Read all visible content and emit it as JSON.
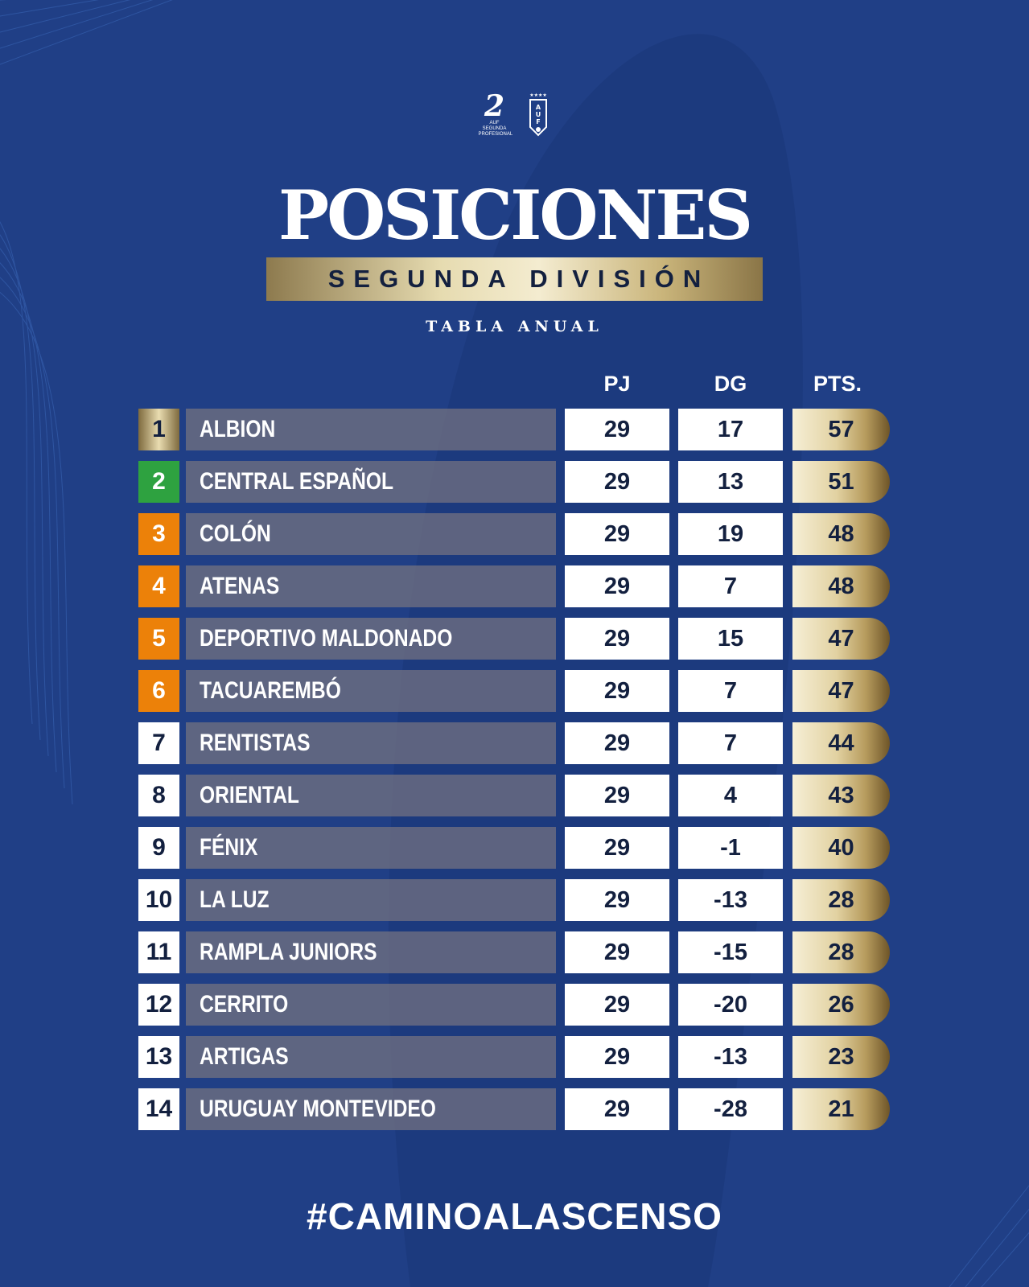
{
  "header": {
    "logo_segunda_number": "2",
    "logo_segunda_brand": "AUF",
    "logo_segunda_text": "SEGUNDA PROFESIONAL",
    "logo_auf_letters": "AUF",
    "title": "POSICIONES",
    "subtitle": "SEGUNDA DIVISIÓN",
    "tabla": "TABLA ANUAL"
  },
  "columns": {
    "pj": "PJ",
    "dg": "DG",
    "pts": "PTS."
  },
  "rows": [
    {
      "pos": "1",
      "team": "ALBION",
      "pj": "29",
      "dg": "17",
      "pts": "57",
      "badge": "gold"
    },
    {
      "pos": "2",
      "team": "CENTRAL ESPAÑOL",
      "pj": "29",
      "dg": "13",
      "pts": "51",
      "badge": "green"
    },
    {
      "pos": "3",
      "team": "COLÓN",
      "pj": "29",
      "dg": "19",
      "pts": "48",
      "badge": "orange"
    },
    {
      "pos": "4",
      "team": "ATENAS",
      "pj": "29",
      "dg": "7",
      "pts": "48",
      "badge": "orange"
    },
    {
      "pos": "5",
      "team": "DEPORTIVO MALDONADO",
      "pj": "29",
      "dg": "15",
      "pts": "47",
      "badge": "orange"
    },
    {
      "pos": "6",
      "team": "TACUAREMBÓ",
      "pj": "29",
      "dg": "7",
      "pts": "47",
      "badge": "orange"
    },
    {
      "pos": "7",
      "team": "RENTISTAS",
      "pj": "29",
      "dg": "7",
      "pts": "44",
      "badge": "white"
    },
    {
      "pos": "8",
      "team": "ORIENTAL",
      "pj": "29",
      "dg": "4",
      "pts": "43",
      "badge": "white"
    },
    {
      "pos": "9",
      "team": "FÉNIX",
      "pj": "29",
      "dg": "-1",
      "pts": "40",
      "badge": "white"
    },
    {
      "pos": "10",
      "team": "LA LUZ",
      "pj": "29",
      "dg": "-13",
      "pts": "28",
      "badge": "white"
    },
    {
      "pos": "11",
      "team": "RAMPLA JUNIORS",
      "pj": "29",
      "dg": "-15",
      "pts": "28",
      "badge": "white"
    },
    {
      "pos": "12",
      "team": "CERRITO",
      "pj": "29",
      "dg": "-20",
      "pts": "26",
      "badge": "white"
    },
    {
      "pos": "13",
      "team": "ARTIGAS",
      "pj": "29",
      "dg": "-13",
      "pts": "23",
      "badge": "white"
    },
    {
      "pos": "14",
      "team": "URUGUAY MONTEVIDEO",
      "pj": "29",
      "dg": "-28",
      "pts": "21",
      "badge": "white"
    }
  ],
  "footer": {
    "hashtag": "#CAMINOALASCENSO"
  },
  "colors": {
    "background": "#203f86",
    "green": "#2ea240",
    "orange": "#ec8109",
    "gold": "#d8c58f",
    "dark_text": "#13203f"
  }
}
